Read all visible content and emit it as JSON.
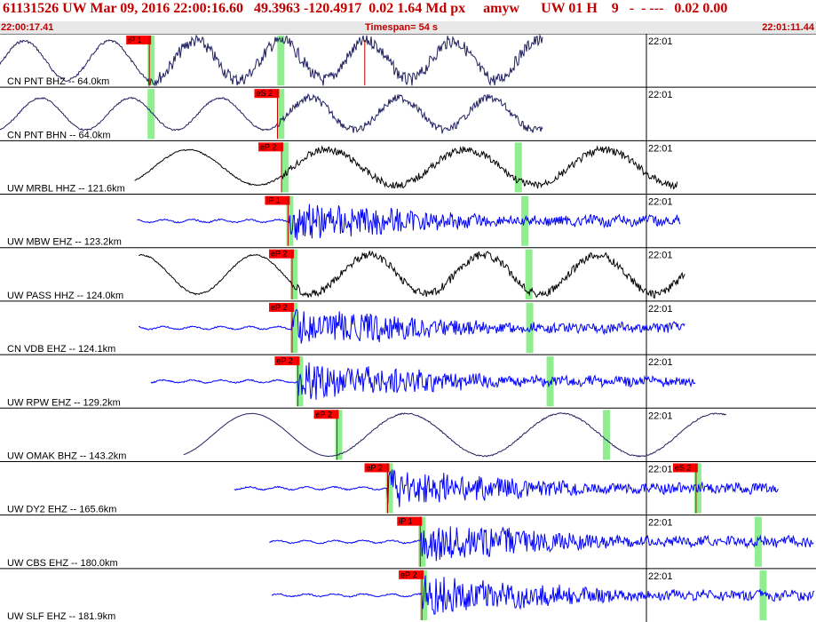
{
  "header": {
    "title": "61131526 UW Mar 09, 2016 22:00:16.60   49.3963 -120.4917  0.02 1.64 Md px     amyw      UW 01 H    9   -  - ---   0.02 0.00"
  },
  "timebar": {
    "start": "22:00:17.41",
    "span": "Timespan=  54 s",
    "end": "22:01:11.44"
  },
  "minute_tick_label": "22:01",
  "colors": {
    "accent": "#c00000",
    "pick": "#ff0000",
    "window": "#90ee90",
    "trace_blue": "#0000ff",
    "trace_black": "#000000",
    "trace_navy": "#202060"
  },
  "traces": [
    {
      "label": "CN PNT BHZ -- 64.0km",
      "color": "#202060",
      "start": 0.0,
      "end": 0.665,
      "amp": 22,
      "period": 0.105,
      "noise": 0.55,
      "onset": 0.18,
      "tick": "22:01",
      "phases": [
        {
          "label": "iP 1",
          "pos": 0.183
        }
      ],
      "windows": [
        0.183,
        0.342
      ],
      "extra_pick": 0.447
    },
    {
      "label": "CN PNT BHN -- 64.0km",
      "color": "#202060",
      "start": 0.0,
      "end": 0.665,
      "amp": 18,
      "period": 0.11,
      "noise": 0.4,
      "onset": 0.34,
      "tick": "22:01",
      "phases": [
        {
          "label": "eS 2",
          "pos": 0.34
        }
      ],
      "windows": [
        0.183,
        0.342
      ]
    },
    {
      "label": "UW MRBL HHZ -- 121.6km",
      "color": "#000000",
      "start": 0.165,
      "end": 0.83,
      "amp": 20,
      "period": 0.17,
      "noise": 0.35,
      "onset": 0.345,
      "tick": "22:01",
      "phases": [
        {
          "label": "eP 2",
          "pos": 0.345
        }
      ],
      "windows": [
        0.347,
        0.633
      ]
    },
    {
      "label": "UW MBW EHZ -- 123.2km",
      "color": "#0000ff",
      "start": 0.168,
      "end": 0.835,
      "amp": 3,
      "period": 0.05,
      "noise": 1.0,
      "onset": 0.355,
      "tick": "22:01",
      "phases": [
        {
          "label": "iP 1",
          "pos": 0.353
        }
      ],
      "windows": [
        0.353,
        0.641
      ]
    },
    {
      "label": "UW PASS HHZ -- 124.0km",
      "color": "#000000",
      "start": 0.17,
      "end": 0.84,
      "amp": 22,
      "period": 0.14,
      "noise": 0.35,
      "onset": 0.358,
      "tick": "22:01",
      "phases": [
        {
          "label": "eP 2",
          "pos": 0.358
        }
      ],
      "windows": [
        0.358,
        0.646
      ]
    },
    {
      "label": "CN VDB EHZ -- 124.1km",
      "color": "#0000ff",
      "start": 0.17,
      "end": 0.84,
      "amp": 2,
      "period": 0.05,
      "noise": 1.0,
      "onset": 0.358,
      "tick": "22:01",
      "phases": [
        {
          "label": "eP 2",
          "pos": 0.358
        }
      ],
      "windows": [
        0.358,
        0.647
      ]
    },
    {
      "label": "UW RPW EHZ -- 129.2km",
      "color": "#0000ff",
      "start": 0.185,
      "end": 0.853,
      "amp": 3,
      "period": 0.05,
      "noise": 1.0,
      "onset": 0.365,
      "tick": "22:01",
      "phases": [
        {
          "label": "eP 2",
          "pos": 0.365
        }
      ],
      "windows": [
        0.365,
        0.672
      ]
    },
    {
      "label": "UW OMAK BHZ -- 143.2km",
      "color": "#202060",
      "start": 0.225,
      "end": 0.89,
      "amp": 24,
      "period": 0.19,
      "noise": 0.05,
      "onset": 0.415,
      "tick": "22:01",
      "phases": [
        {
          "label": "eP 2",
          "pos": 0.413
        }
      ],
      "windows": [
        0.413,
        0.741
      ]
    },
    {
      "label": "UW DY2 EHZ -- 165.6km",
      "color": "#0000ff",
      "start": 0.287,
      "end": 0.955,
      "amp": 2,
      "period": 0.05,
      "noise": 1.0,
      "onset": 0.475,
      "tick": "22:01",
      "phases": [
        {
          "label": "eP 2",
          "pos": 0.475
        },
        {
          "label": "eS 2",
          "pos": 0.853
        }
      ],
      "windows": [
        0.475,
        0.853
      ]
    },
    {
      "label": "UW CBS EHZ -- 180.0km",
      "color": "#0000ff",
      "start": 0.33,
      "end": 0.998,
      "amp": 3,
      "period": 0.05,
      "noise": 1.0,
      "onset": 0.515,
      "tick": "22:01",
      "phases": [
        {
          "label": "iP 1",
          "pos": 0.515
        }
      ],
      "windows": [
        0.515,
        0.927
      ]
    },
    {
      "label": "UW SLF EHZ -- 181.9km",
      "color": "#0000ff",
      "start": 0.333,
      "end": 0.998,
      "amp": 3,
      "period": 0.05,
      "noise": 1.0,
      "onset": 0.517,
      "tick": "22:01",
      "phases": [
        {
          "label": "eP 2",
          "pos": 0.517
        }
      ],
      "windows": [
        0.517,
        0.933
      ]
    }
  ]
}
